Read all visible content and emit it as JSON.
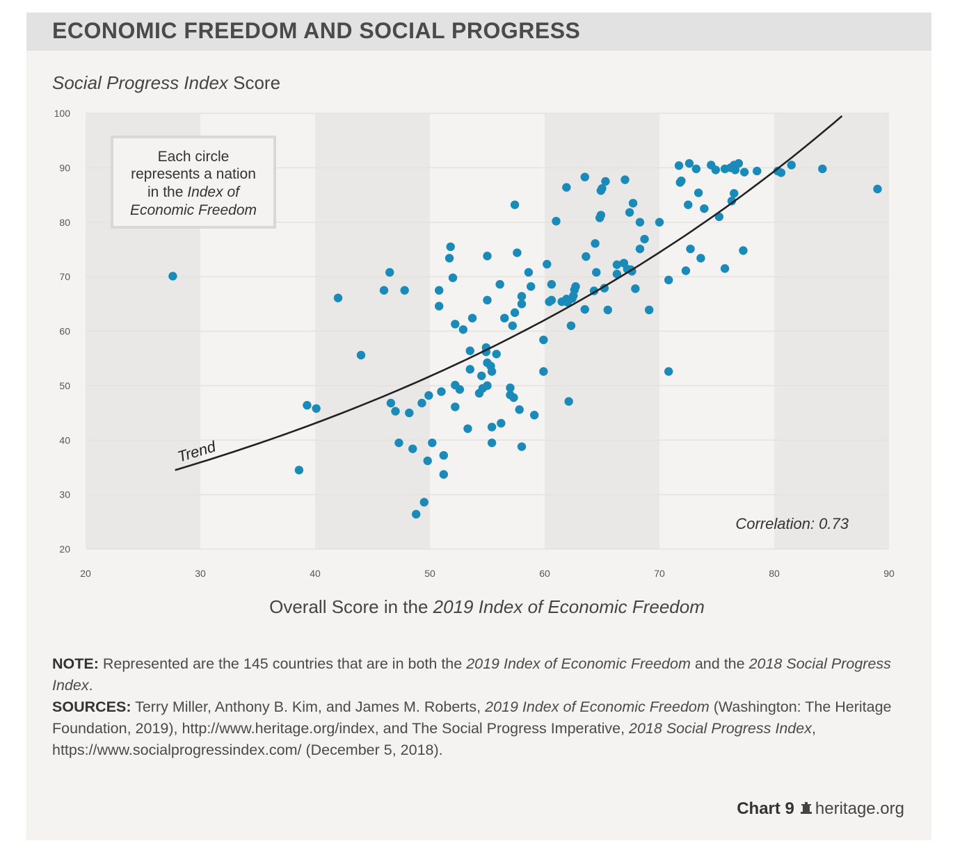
{
  "title": "ECONOMIC FREEDOM AND SOCIAL PROGRESS",
  "y_title_italic": "Social Progress Index",
  "y_title_rest": " Score",
  "x_title_plain": "Overall Score in the ",
  "x_title_italic": "2019 Index of Economic Freedom",
  "legend": {
    "line1": "Each circle",
    "line2": "represents a nation",
    "line3_plain": "in the ",
    "line3_italic": "Index of",
    "line4": "Economic Freedom"
  },
  "trend_label": "Trend",
  "correlation": "Correlation: 0.73",
  "note": {
    "label": "NOTE:",
    "t1": " Represented are the 145 countries that are in both the ",
    "i1": "2019 Index of Economic Freedom",
    "t2": " and the ",
    "i2": "2018 Social Progress Index",
    "t3": "."
  },
  "sources": {
    "label": "SOURCES:",
    "t1": " Terry Miller, Anthony B. Kim, and James M. Roberts, ",
    "i1": "2019 Index of Economic Freedom",
    "t2": " (Washington: The Heritage Foundation, 2019), http://www.heritage.org/index, and The Social Progress Imperative, ",
    "i2": "2018 Social Progress Index",
    "t3": ", https://www.socialprogressindex.com/ (December 5, 2018)."
  },
  "footer": {
    "chart_label": "Chart 9",
    "site": "heritage.org"
  },
  "colors": {
    "dot": "#1a8bb8",
    "trend": "#222222",
    "band": "#e9e8e6",
    "grid": "#e3e2df"
  },
  "chart_data": {
    "type": "scatter",
    "title": "ECONOMIC FREEDOM AND SOCIAL PROGRESS",
    "xlabel": "Overall Score in the 2019 Index of Economic Freedom",
    "ylabel": "Social Progress Index Score",
    "xlim": [
      20,
      90
    ],
    "ylim": [
      20,
      100
    ],
    "xticks": [
      20,
      30,
      40,
      50,
      60,
      70,
      80,
      90
    ],
    "yticks": [
      20,
      30,
      40,
      50,
      60,
      70,
      80,
      90,
      100
    ],
    "correlation": 0.73,
    "trend": {
      "type": "exponential",
      "x_start": 27.8,
      "y_start": 34.5,
      "x_end": 85.9,
      "y_end": 99.5
    },
    "points": [
      [
        27.6,
        70.1
      ],
      [
        38.6,
        34.5
      ],
      [
        39.3,
        46.4
      ],
      [
        40.1,
        45.8
      ],
      [
        42.0,
        66.1
      ],
      [
        44.0,
        55.6
      ],
      [
        46.0,
        67.5
      ],
      [
        46.5,
        70.8
      ],
      [
        46.6,
        46.8
      ],
      [
        47.0,
        45.3
      ],
      [
        47.3,
        39.5
      ],
      [
        47.8,
        67.5
      ],
      [
        48.2,
        45.0
      ],
      [
        48.5,
        38.4
      ],
      [
        48.8,
        26.4
      ],
      [
        49.3,
        46.8
      ],
      [
        49.5,
        28.6
      ],
      [
        49.8,
        36.2
      ],
      [
        49.9,
        48.2
      ],
      [
        50.2,
        39.5
      ],
      [
        50.8,
        67.5
      ],
      [
        50.8,
        64.6
      ],
      [
        51.0,
        48.9
      ],
      [
        51.2,
        37.2
      ],
      [
        51.2,
        33.7
      ],
      [
        51.7,
        73.4
      ],
      [
        51.8,
        75.5
      ],
      [
        52.0,
        69.8
      ],
      [
        52.2,
        50.1
      ],
      [
        52.2,
        46.1
      ],
      [
        52.2,
        61.3
      ],
      [
        52.6,
        49.3
      ],
      [
        52.9,
        60.3
      ],
      [
        53.3,
        42.1
      ],
      [
        53.5,
        56.4
      ],
      [
        53.5,
        53.0
      ],
      [
        53.7,
        62.4
      ],
      [
        54.3,
        48.6
      ],
      [
        54.5,
        51.8
      ],
      [
        54.6,
        49.5
      ],
      [
        54.9,
        57.0
      ],
      [
        54.9,
        56.2
      ],
      [
        55.0,
        54.2
      ],
      [
        55.0,
        50.0
      ],
      [
        55.0,
        65.7
      ],
      [
        55.0,
        73.8
      ],
      [
        55.3,
        53.6
      ],
      [
        55.4,
        52.6
      ],
      [
        55.4,
        42.4
      ],
      [
        55.4,
        39.5
      ],
      [
        55.8,
        55.8
      ],
      [
        56.1,
        68.6
      ],
      [
        56.2,
        43.1
      ],
      [
        56.5,
        62.4
      ],
      [
        57.0,
        49.6
      ],
      [
        57.0,
        48.3
      ],
      [
        57.2,
        61.0
      ],
      [
        57.3,
        47.8
      ],
      [
        57.4,
        63.4
      ],
      [
        57.4,
        83.2
      ],
      [
        57.6,
        74.4
      ],
      [
        57.8,
        45.6
      ],
      [
        58.0,
        66.4
      ],
      [
        58.0,
        65.0
      ],
      [
        58.0,
        38.8
      ],
      [
        58.6,
        70.8
      ],
      [
        58.8,
        68.2
      ],
      [
        59.1,
        44.6
      ],
      [
        59.9,
        52.6
      ],
      [
        59.9,
        58.4
      ],
      [
        60.2,
        72.3
      ],
      [
        60.4,
        65.4
      ],
      [
        60.6,
        68.6
      ],
      [
        60.6,
        65.7
      ],
      [
        61.0,
        80.2
      ],
      [
        61.5,
        65.4
      ],
      [
        61.9,
        86.4
      ],
      [
        61.9,
        65.9
      ],
      [
        62.0,
        65.3
      ],
      [
        62.1,
        47.1
      ],
      [
        62.3,
        61.0
      ],
      [
        62.4,
        66.0
      ],
      [
        62.5,
        66.5
      ],
      [
        62.6,
        67.6
      ],
      [
        62.7,
        68.2
      ],
      [
        63.5,
        64.0
      ],
      [
        63.5,
        88.3
      ],
      [
        63.6,
        73.7
      ],
      [
        64.3,
        67.4
      ],
      [
        64.4,
        76.1
      ],
      [
        64.5,
        70.8
      ],
      [
        64.8,
        80.8
      ],
      [
        64.9,
        81.3
      ],
      [
        64.9,
        85.8
      ],
      [
        65.0,
        86.2
      ],
      [
        65.2,
        67.9
      ],
      [
        65.3,
        87.5
      ],
      [
        65.5,
        63.9
      ],
      [
        66.3,
        72.2
      ],
      [
        66.3,
        70.5
      ],
      [
        66.9,
        72.5
      ],
      [
        67.0,
        87.8
      ],
      [
        67.2,
        71.4
      ],
      [
        67.4,
        81.8
      ],
      [
        67.5,
        71.3
      ],
      [
        67.6,
        71.0
      ],
      [
        67.7,
        83.5
      ],
      [
        67.9,
        67.8
      ],
      [
        68.3,
        80.0
      ],
      [
        68.3,
        75.1
      ],
      [
        68.7,
        76.9
      ],
      [
        69.1,
        63.9
      ],
      [
        70.0,
        80.0
      ],
      [
        70.8,
        69.4
      ],
      [
        70.8,
        52.6
      ],
      [
        71.7,
        90.4
      ],
      [
        71.8,
        87.3
      ],
      [
        71.9,
        87.6
      ],
      [
        72.3,
        71.1
      ],
      [
        72.5,
        83.2
      ],
      [
        72.6,
        90.8
      ],
      [
        72.7,
        75.1
      ],
      [
        73.2,
        89.8
      ],
      [
        73.4,
        85.4
      ],
      [
        73.6,
        73.4
      ],
      [
        73.9,
        82.5
      ],
      [
        74.5,
        90.5
      ],
      [
        74.9,
        89.6
      ],
      [
        75.2,
        81.0
      ],
      [
        75.7,
        71.5
      ],
      [
        75.7,
        89.8
      ],
      [
        76.2,
        90.0
      ],
      [
        76.3,
        83.9
      ],
      [
        76.5,
        85.3
      ],
      [
        76.5,
        90.5
      ],
      [
        76.6,
        89.6
      ],
      [
        76.9,
        90.8
      ],
      [
        77.3,
        74.8
      ],
      [
        77.4,
        89.2
      ],
      [
        78.5,
        89.4
      ],
      [
        80.3,
        89.4
      ],
      [
        80.6,
        89.1
      ],
      [
        81.5,
        90.5
      ],
      [
        84.2,
        89.8
      ],
      [
        89.0,
        86.1
      ]
    ]
  }
}
